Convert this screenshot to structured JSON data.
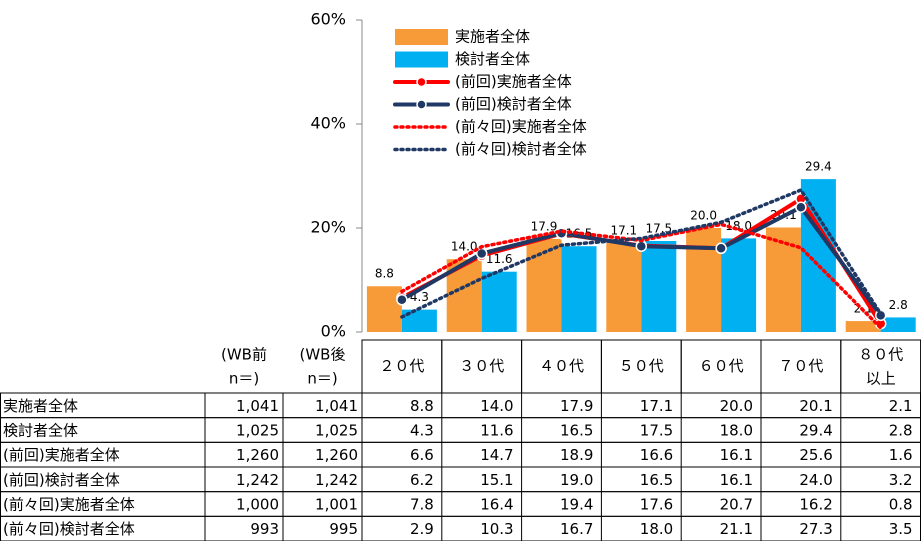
{
  "chart_data": {
    "type": "bar_line",
    "categories": [
      "２０代",
      "３０代",
      "４０代",
      "５０代",
      "６０代",
      "７０代",
      "８０代\n以上"
    ],
    "ylim": [
      0,
      60
    ],
    "yticks": [
      {
        "value": 0,
        "label": "0%"
      },
      {
        "value": 20,
        "label": "20%"
      },
      {
        "value": 40,
        "label": "40%"
      },
      {
        "value": 60,
        "label": "60%"
      }
    ],
    "table_headers": [
      "(WB前\nn＝)",
      "(WB後\nn＝)"
    ],
    "series": [
      {
        "name": "実施者全体",
        "style": "bar",
        "color": "#f79a38",
        "n_before": "1,041",
        "n_after": "1,041",
        "values": [
          8.8,
          14.0,
          17.9,
          17.1,
          20.0,
          20.1,
          2.1
        ],
        "value_labels": [
          "8.8",
          "14.0",
          "17.9",
          "17.1",
          "20.0",
          "20.1",
          "2.1"
        ]
      },
      {
        "name": "検討者全体",
        "style": "bar",
        "color": "#00b0f0",
        "n_before": "1,025",
        "n_after": "1,025",
        "values": [
          4.3,
          11.6,
          16.5,
          17.5,
          18.0,
          29.4,
          2.8
        ],
        "value_labels": [
          "4.3",
          "11.6",
          "16.5",
          "17.5",
          "18.0",
          "29.4",
          "2.8"
        ]
      },
      {
        "name": "(前回)実施者全体",
        "style": "line",
        "dash": false,
        "color": "#ff0000",
        "n_before": "1,260",
        "n_after": "1,260",
        "values": [
          6.6,
          14.7,
          18.9,
          16.6,
          16.1,
          25.6,
          1.6
        ],
        "value_labels": [
          "6.6",
          "14.7",
          "18.9",
          "16.6",
          "16.1",
          "25.6",
          "1.6"
        ]
      },
      {
        "name": "(前回)検討者全体",
        "style": "line",
        "dash": false,
        "color": "#203864",
        "n_before": "1,242",
        "n_after": "1,242",
        "values": [
          6.2,
          15.1,
          19.0,
          16.5,
          16.1,
          24.0,
          3.2
        ],
        "value_labels": [
          "6.2",
          "15.1",
          "19.0",
          "16.5",
          "16.1",
          "24.0",
          "3.2"
        ]
      },
      {
        "name": "(前々回)実施者全体",
        "style": "line",
        "dash": true,
        "color": "#ff0000",
        "n_before": "1,000",
        "n_after": "1,001",
        "values": [
          7.8,
          16.4,
          19.4,
          17.6,
          20.7,
          16.2,
          0.8
        ],
        "value_labels": [
          "7.8",
          "16.4",
          "19.4",
          "17.6",
          "20.7",
          "16.2",
          "0.8"
        ]
      },
      {
        "name": "(前々回)検討者全体",
        "style": "line",
        "dash": true,
        "color": "#203864",
        "n_before": "993",
        "n_after": "995",
        "values": [
          2.9,
          10.3,
          16.7,
          18.0,
          21.1,
          27.3,
          3.5
        ],
        "value_labels": [
          "2.9",
          "10.3",
          "16.7",
          "18.0",
          "21.1",
          "27.3",
          "3.5"
        ]
      }
    ]
  }
}
